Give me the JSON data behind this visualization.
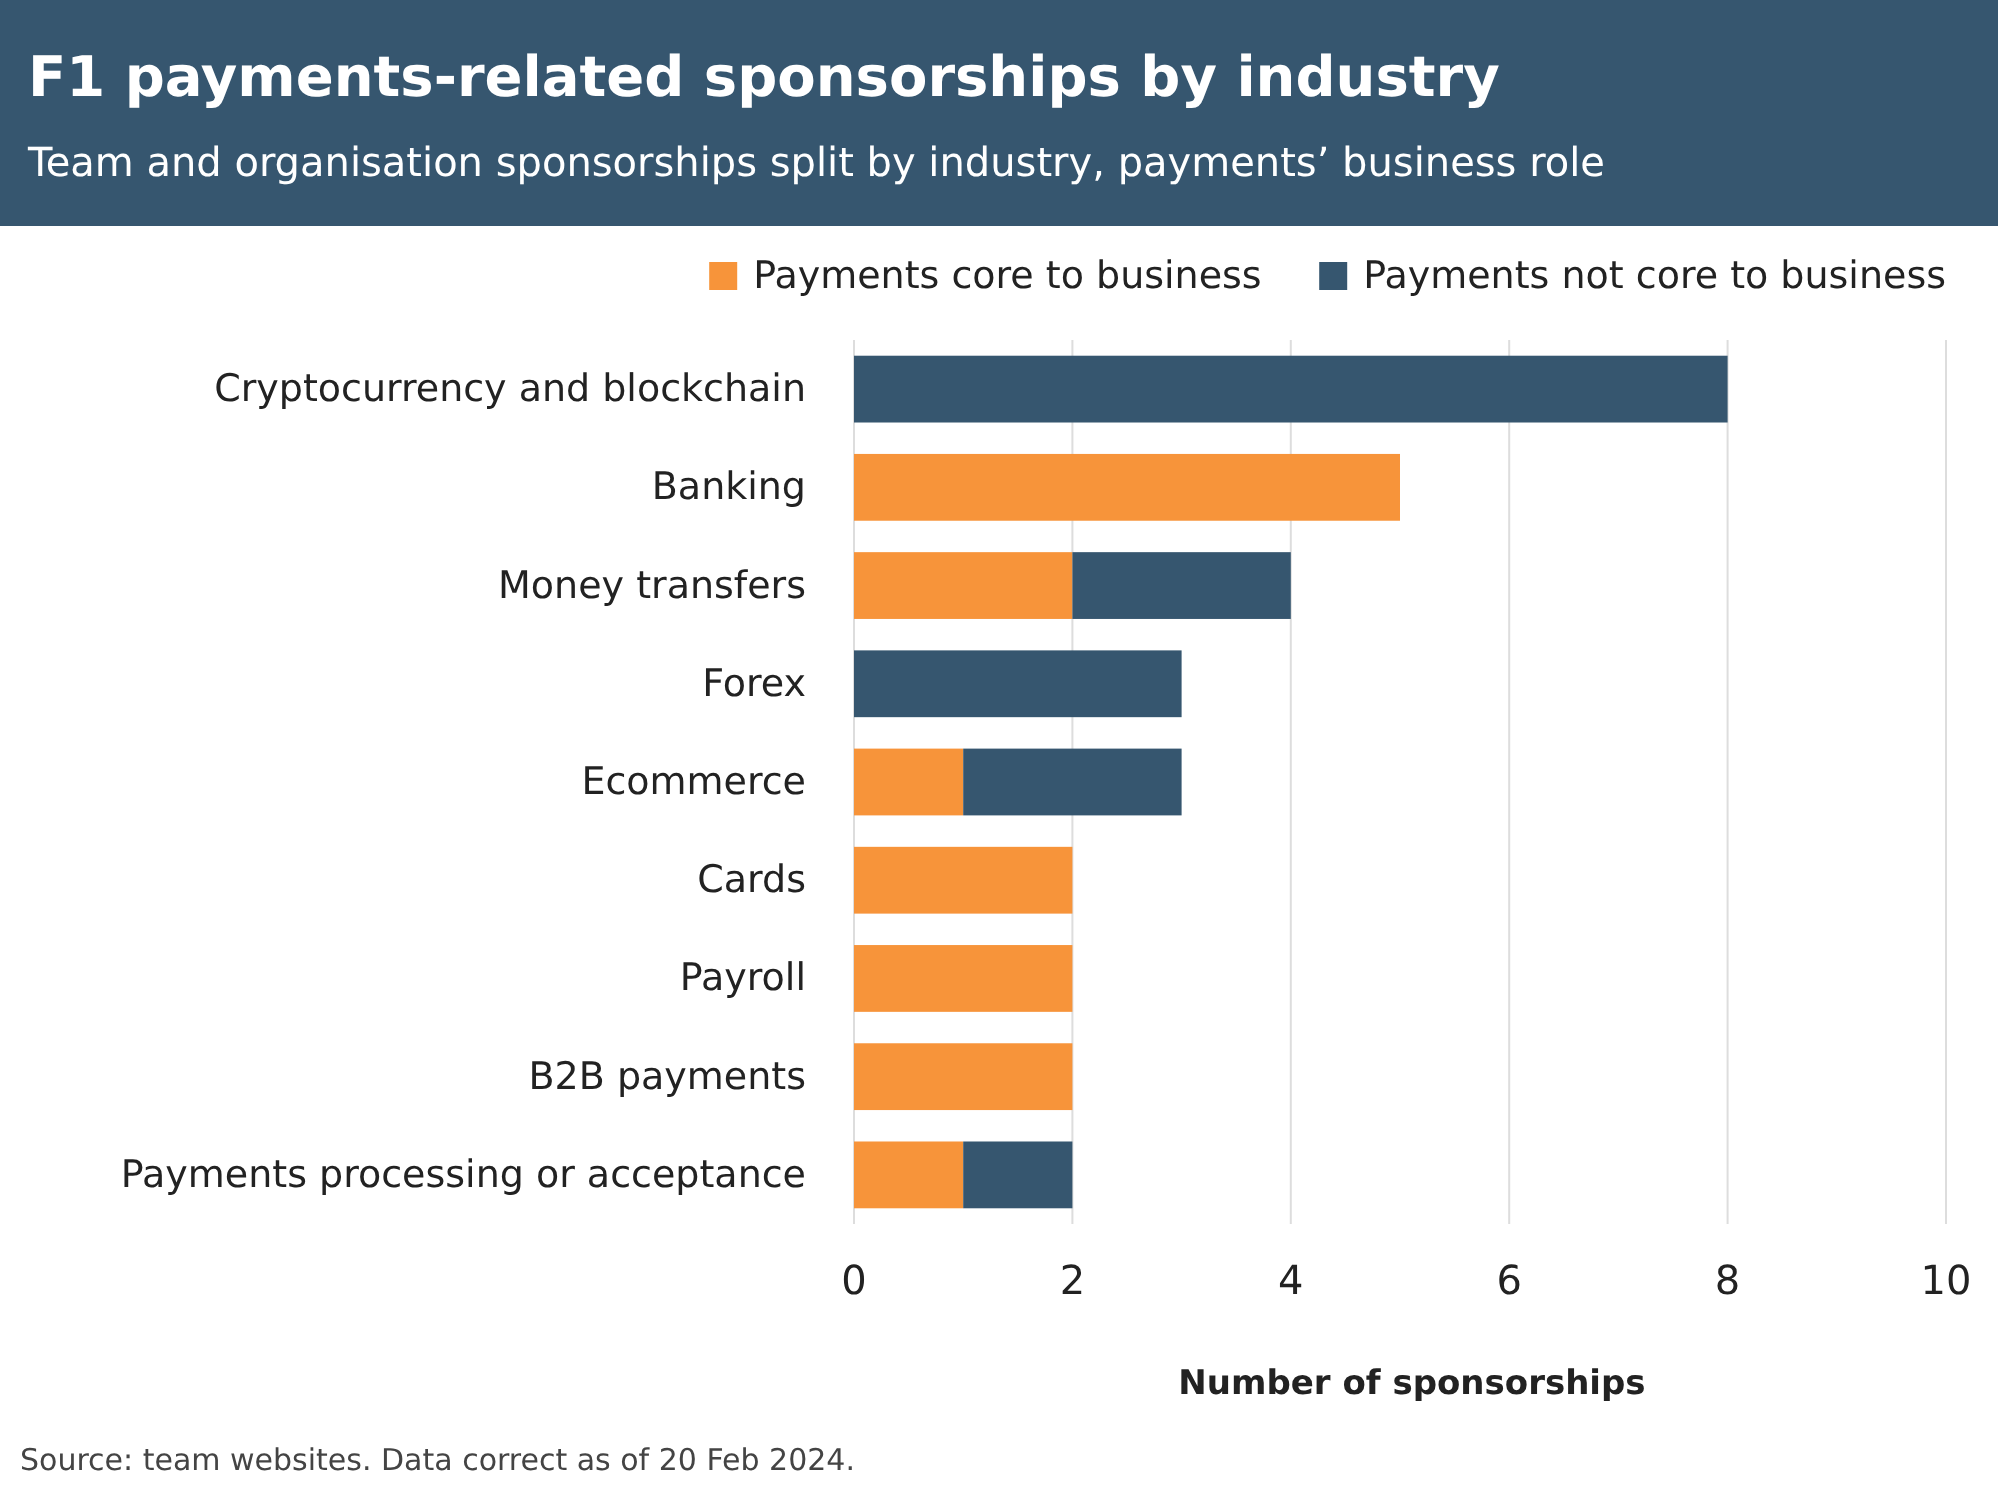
{
  "chart_data": {
    "type": "bar",
    "orientation": "horizontal",
    "stacked": true,
    "title": "F1 payments-related sponsorships by industry",
    "subtitle": "Team and organisation sponsorships split by industry, payments’ business role",
    "categories": [
      "Cryptocurrency and blockchain",
      "Banking",
      "Money transfers",
      "Forex",
      "Ecommerce",
      "Cards",
      "Payroll",
      "B2B payments",
      "Payments processing or acceptance"
    ],
    "series": [
      {
        "name": "Payments core to business",
        "color": "#f7943a",
        "values": [
          0,
          5,
          2,
          0,
          1,
          2,
          2,
          2,
          1
        ]
      },
      {
        "name": "Payments not core to business",
        "color": "#36566f",
        "values": [
          8,
          0,
          2,
          3,
          2,
          0,
          0,
          0,
          1
        ]
      }
    ],
    "xlim": [
      0,
      10
    ],
    "xticks": [
      0,
      2,
      4,
      6,
      8,
      10
    ],
    "xlabel": "Number of sponsorships",
    "grid": "x",
    "legend": "top",
    "annotations": [
      "Source: team websites. Data correct as of 20 Feb 2024."
    ]
  }
}
